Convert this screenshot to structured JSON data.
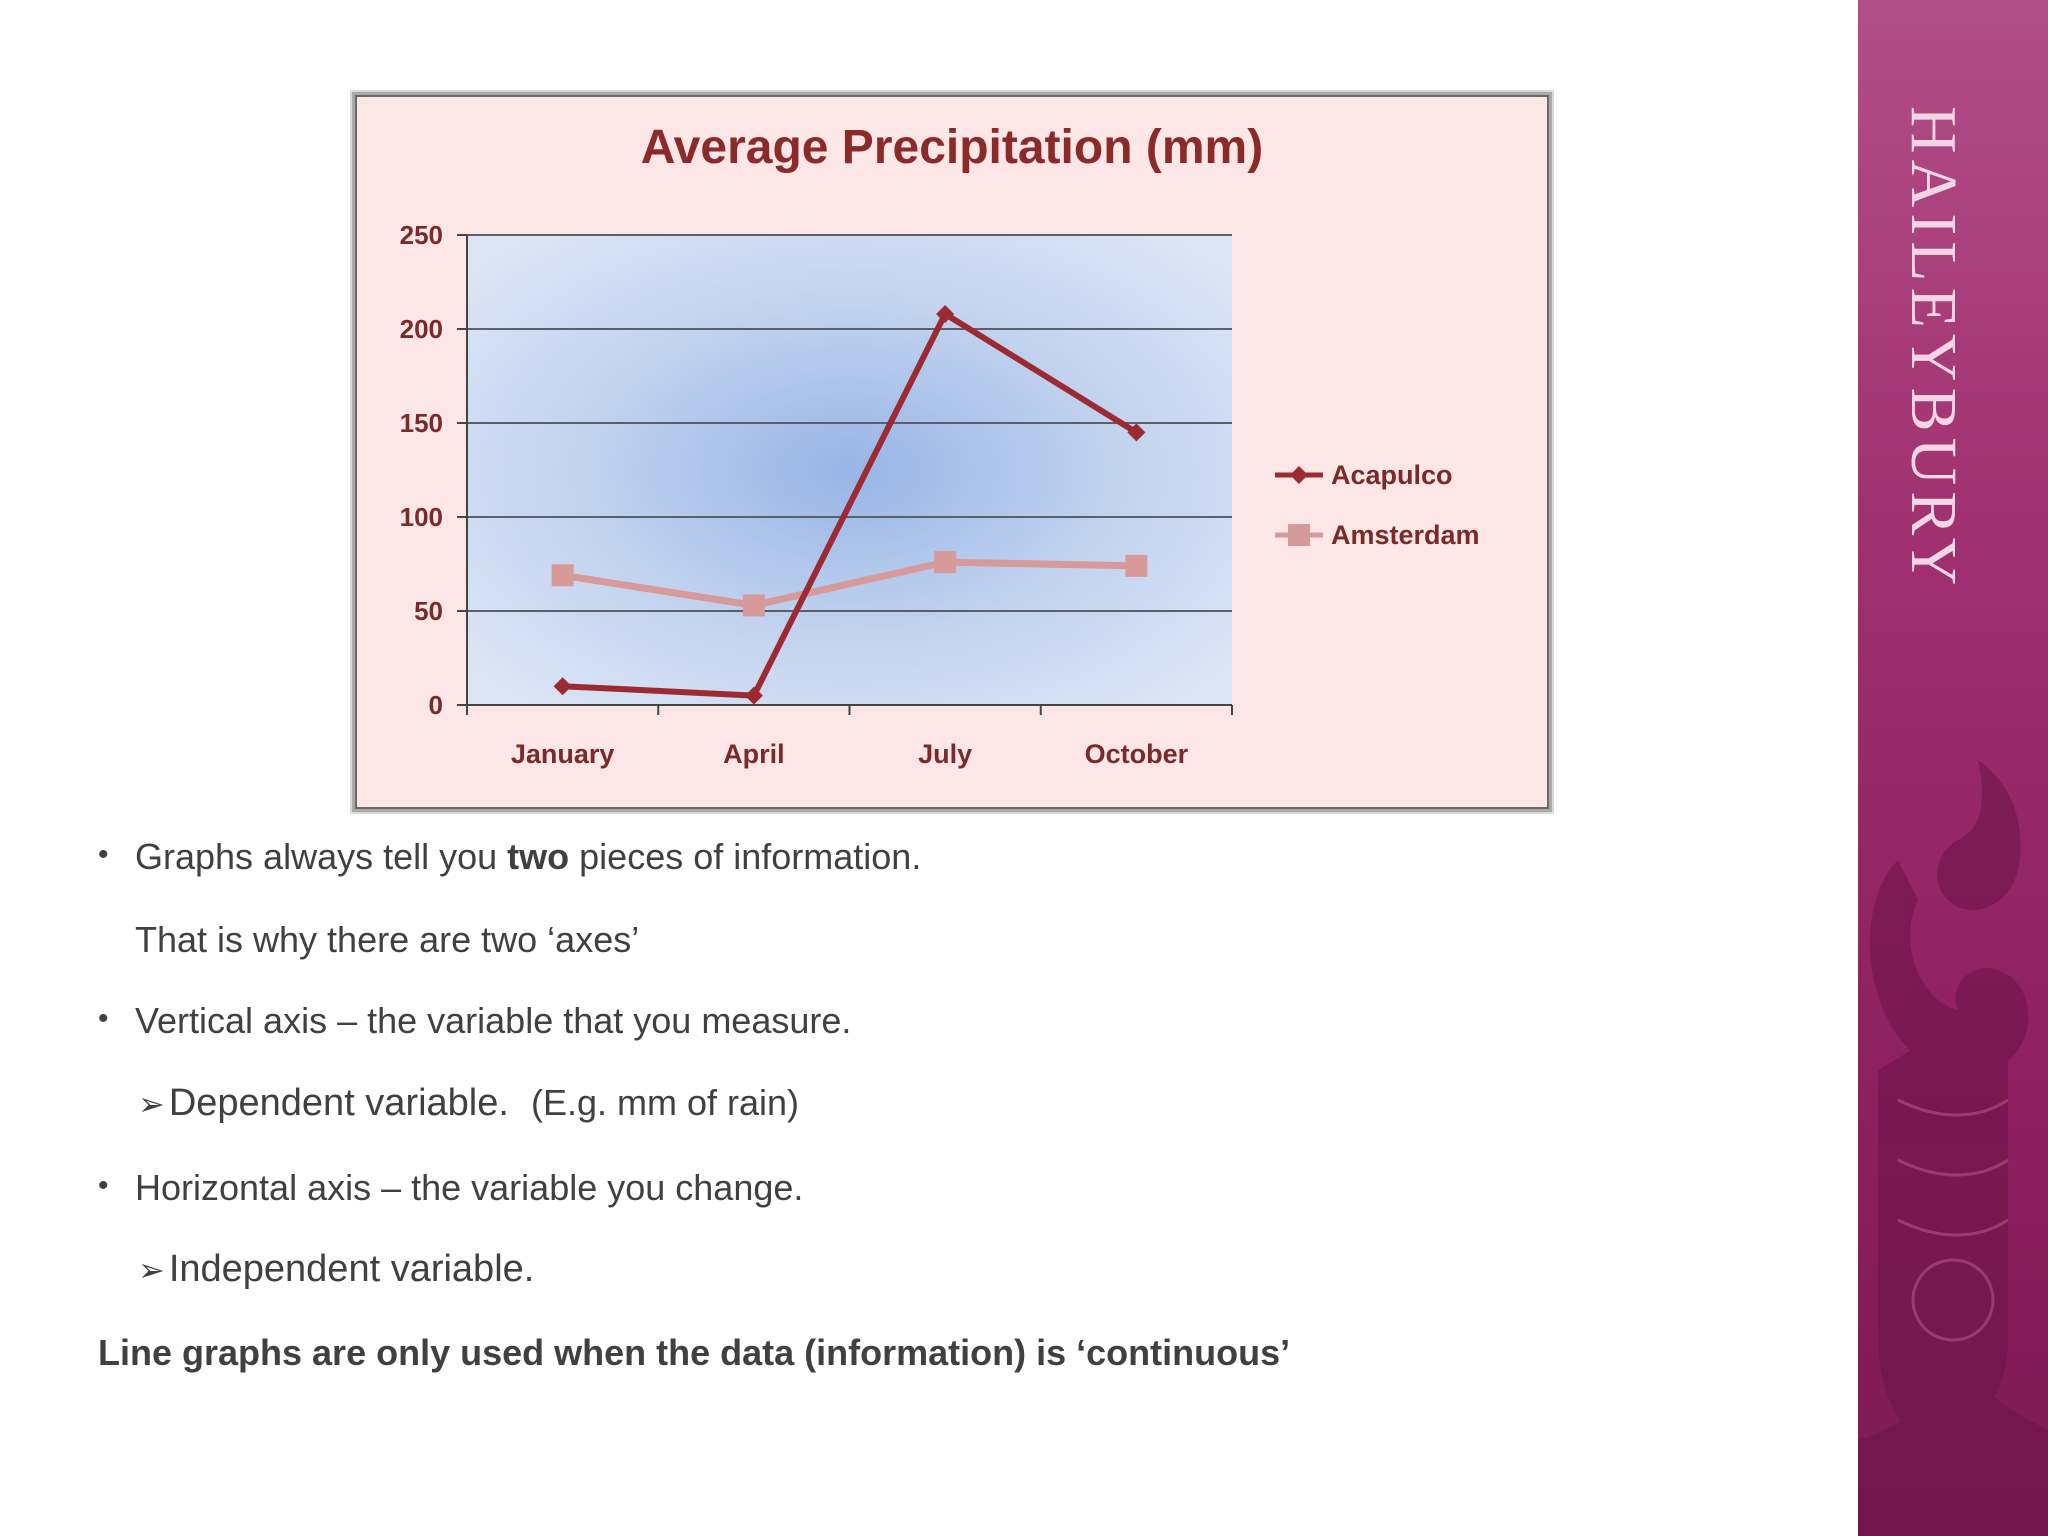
{
  "banner": {
    "wordmark": "HAILEYBURY",
    "colors": {
      "top": "#b14f87",
      "bottom": "#7c1a53"
    }
  },
  "chart_data": {
    "type": "line",
    "title": "Average Precipitation (mm)",
    "categories": [
      "January",
      "April",
      "July",
      "October"
    ],
    "series": [
      {
        "name": "Acapulco",
        "values": [
          10,
          5,
          208,
          145
        ],
        "color": "#9b2a32",
        "marker": "diamond"
      },
      {
        "name": "Amsterdam",
        "values": [
          69,
          53,
          76,
          74
        ],
        "color": "#d79a9a",
        "marker": "square"
      }
    ],
    "yticks": [
      "0",
      "50",
      "100",
      "150",
      "200",
      "250"
    ],
    "ylim": [
      0,
      250
    ],
    "grid": true,
    "legend": "right",
    "colors": {
      "background": "#fde6e6",
      "plot_area": "#cfdcf2",
      "text": "#7a2a2a"
    }
  },
  "bullets": {
    "item1_pre": "Graphs always tell you ",
    "item1_bold": "two",
    "item1_post": " pieces of information.",
    "item1_cont": "That is why there are two ‘axes’",
    "item2": "Vertical axis – the variable that you measure.",
    "item2_sub_main": "Dependent variable.",
    "item2_sub_extra": "(E.g. mm of rain)",
    "item3": "Horizontal axis – the variable you change.",
    "item3_sub": "Independent variable.",
    "conclusion": "Line graphs are only used when the data (information) is ‘continuous’",
    "bullet_symbol": "•",
    "arrow_symbol": "➢"
  }
}
